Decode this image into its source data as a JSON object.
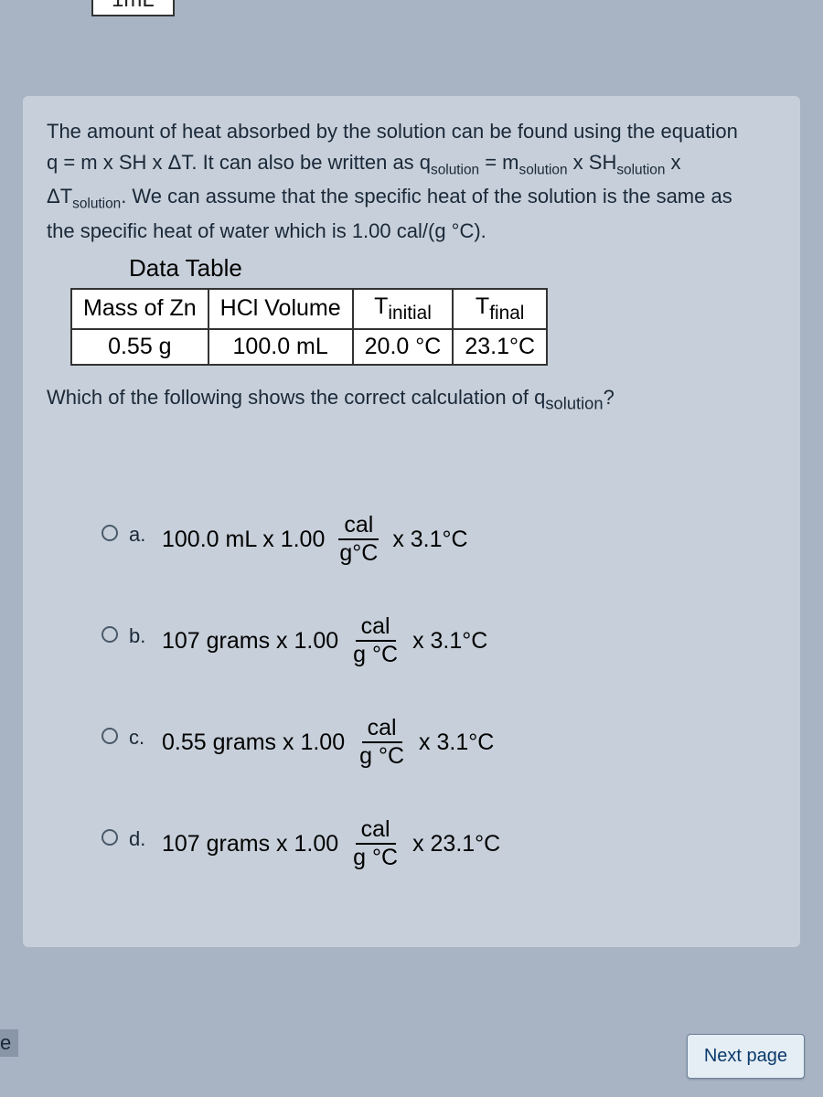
{
  "top_fragment": "1mL",
  "prompt_p1": "The amount of heat absorbed by the solution can be found using the equation",
  "prompt_eq1_left": "q = m x SH x ΔT.  It can also be written as q",
  "prompt_eq1_sub1": "solution",
  "prompt_eq1_mid": " = m",
  "prompt_eq1_sub2": "solution",
  "prompt_eq1_mid2": " x SH",
  "prompt_eq1_sub3": "solution",
  "prompt_eq1_end": " x",
  "prompt_p2a": "ΔT",
  "prompt_p2a_sub": "solution",
  "prompt_p2b": ".  We can assume that the specific heat of the solution is the same as",
  "prompt_p3": "the specific heat of water which is 1.00 cal/(g °C).",
  "data_title": "Data Table",
  "table": {
    "headers": [
      "Mass of Zn",
      "HCl Volume"
    ],
    "t_initial_pre": "T",
    "t_initial_sub": "initial",
    "t_final_pre": "T",
    "t_final_sub": "final",
    "row": [
      "0.55 g",
      "100.0 mL",
      "20.0 °C",
      "23.1°C"
    ]
  },
  "question_pre": "Which of the following shows the correct calculation of q",
  "question_sub": "solution",
  "question_post": "?",
  "options": {
    "a": {
      "label": "a.",
      "lead": "100.0 mL x 1.00",
      "num": "cal",
      "den": "g°C",
      "tail": "x 3.1°C"
    },
    "b": {
      "label": "b.",
      "lead": "107 grams x 1.00",
      "num": "cal",
      "den": "g °C",
      "tail": "x 3.1°C"
    },
    "c": {
      "label": "c.",
      "lead": "0.55 grams x 1.00",
      "num": "cal",
      "den": "g °C",
      "tail": "x 3.1°C"
    },
    "d": {
      "label": "d.",
      "lead": "107 grams x 1.00",
      "num": "cal",
      "den": "g °C",
      "tail": "x  23.1°C"
    }
  },
  "left_tag": "e",
  "next_btn": "Next page",
  "colors": {
    "page_bg": "#a8b4c4",
    "card_bg": "#c7d0da",
    "btn_bg": "#e6eef5",
    "btn_text": "#0a3a6b"
  }
}
